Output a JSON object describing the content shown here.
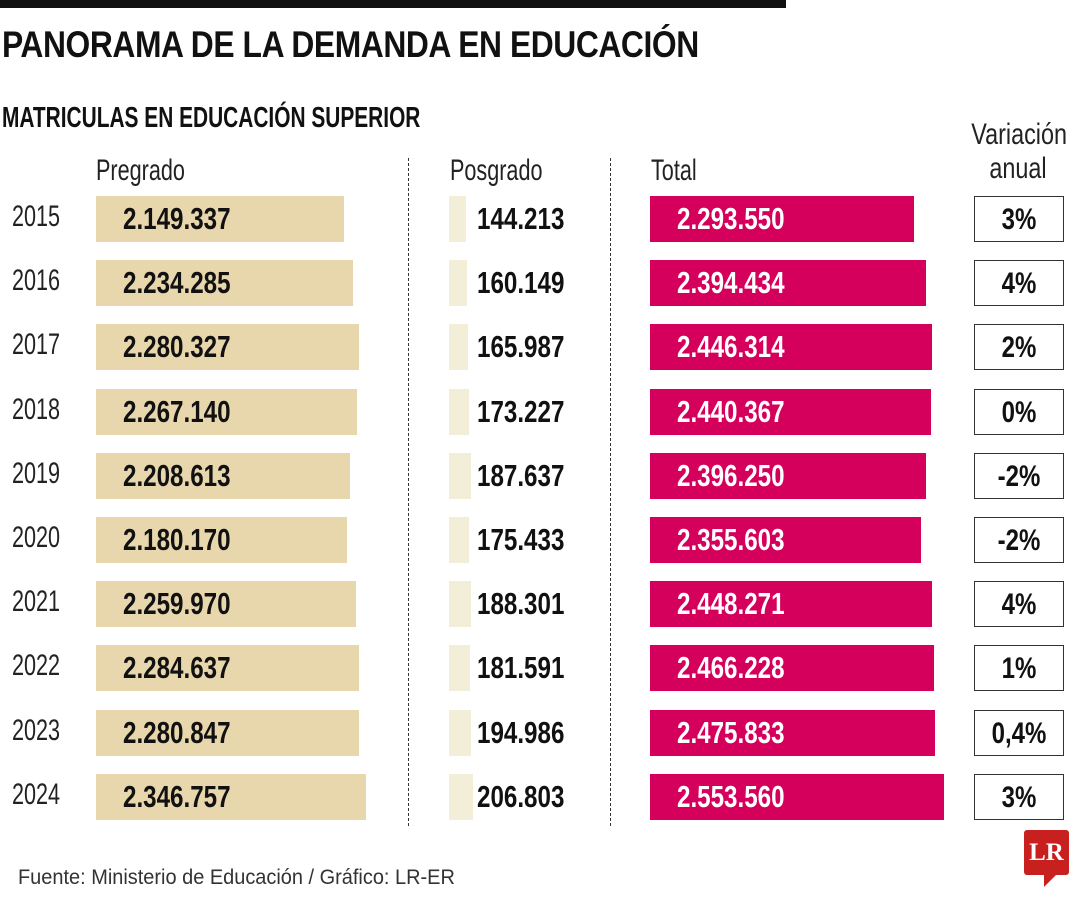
{
  "title": "PANORAMA DE LA DEMANDA EN EDUCACIÓN",
  "chart_data": {
    "type": "bar",
    "title": "MATRICULAS EN EDUCACIÓN SUPERIOR",
    "columns": {
      "pregrado": "Pregrado",
      "posgrado": "Posgrado",
      "total": "Total",
      "variacion": "Variación anual"
    },
    "colors": {
      "pregrado": "#e8d6ad",
      "posgrado": "#f3eed8",
      "total": "#d4005b"
    },
    "rows": [
      {
        "year": "2015",
        "pregrado": 2149337,
        "pregrado_label": "2.149.337",
        "posgrado": 144213,
        "posgrado_label": "144.213",
        "total": 2293550,
        "total_label": "2.293.550",
        "variacion": "3%"
      },
      {
        "year": "2016",
        "pregrado": 2234285,
        "pregrado_label": "2.234.285",
        "posgrado": 160149,
        "posgrado_label": "160.149",
        "total": 2394434,
        "total_label": "2.394.434",
        "variacion": "4%"
      },
      {
        "year": "2017",
        "pregrado": 2280327,
        "pregrado_label": "2.280.327",
        "posgrado": 165987,
        "posgrado_label": "165.987",
        "total": 2446314,
        "total_label": "2.446.314",
        "variacion": "2%"
      },
      {
        "year": "2018",
        "pregrado": 2267140,
        "pregrado_label": "2.267.140",
        "posgrado": 173227,
        "posgrado_label": "173.227",
        "total": 2440367,
        "total_label": "2.440.367",
        "variacion": "0%"
      },
      {
        "year": "2019",
        "pregrado": 2208613,
        "pregrado_label": "2.208.613",
        "posgrado": 187637,
        "posgrado_label": "187.637",
        "total": 2396250,
        "total_label": "2.396.250",
        "variacion": "-2%"
      },
      {
        "year": "2020",
        "pregrado": 2180170,
        "pregrado_label": "2.180.170",
        "posgrado": 175433,
        "posgrado_label": "175.433",
        "total": 2355603,
        "total_label": "2.355.603",
        "variacion": "-2%"
      },
      {
        "year": "2021",
        "pregrado": 2259970,
        "pregrado_label": "2.259.970",
        "posgrado": 188301,
        "posgrado_label": "188.301",
        "total": 2448271,
        "total_label": "2.448.271",
        "variacion": "4%"
      },
      {
        "year": "2022",
        "pregrado": 2284637,
        "pregrado_label": "2.284.637",
        "posgrado": 181591,
        "posgrado_label": "181.591",
        "total": 2466228,
        "total_label": "2.466.228",
        "variacion": "1%"
      },
      {
        "year": "2023",
        "pregrado": 2280847,
        "pregrado_label": "2.280.847",
        "posgrado": 194986,
        "posgrado_label": "194.986",
        "total": 2475833,
        "total_label": "2.475.833",
        "variacion": "0,4%"
      },
      {
        "year": "2024",
        "pregrado": 2346757,
        "pregrado_label": "2.346.757",
        "posgrado": 206803,
        "posgrado_label": "206.803",
        "total": 2553560,
        "total_label": "2.553.560",
        "variacion": "3%"
      }
    ]
  },
  "source": "Fuente: Ministerio de Educación / Gráfico: LR-ER",
  "logo": "LR"
}
